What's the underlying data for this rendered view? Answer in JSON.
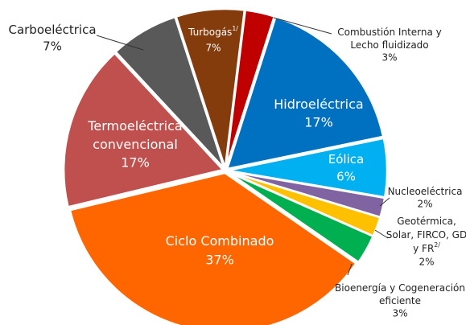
{
  "chart_data": {
    "type": "pie",
    "categories": [
      [
        "Combustión Interna y",
        "Lecho fluidizado"
      ],
      [
        "Hidroeléctrica"
      ],
      [
        "Eólica"
      ],
      [
        "Nucleoeléctrica"
      ],
      [
        "Geotérmica,",
        "Solar, FIRCO, GD",
        "y FR"
      ],
      [
        "Bioenergía y Cogeneración",
        "eficiente"
      ],
      [
        "Ciclo Combinado"
      ],
      [
        "Termoeléctrica",
        "convencional"
      ],
      [
        "Carboeléctrica"
      ],
      [
        "Turbogás"
      ]
    ],
    "notes": [
      null,
      null,
      null,
      null,
      "2/",
      null,
      null,
      null,
      null,
      "1/"
    ],
    "values": [
      3,
      17,
      6,
      2,
      2,
      3,
      37,
      17,
      7,
      7
    ],
    "value_labels": [
      "3%",
      "17%",
      "6%",
      "2%",
      "2%",
      "3%",
      "37%",
      "17%",
      "7%",
      "7%"
    ],
    "colors": [
      "#c00000",
      "#0070c0",
      "#00b0f0",
      "#8064a2",
      "#ffc000",
      "#00b050",
      "#ff6600",
      "#c0504d",
      "#595959",
      "#843c0c"
    ]
  }
}
